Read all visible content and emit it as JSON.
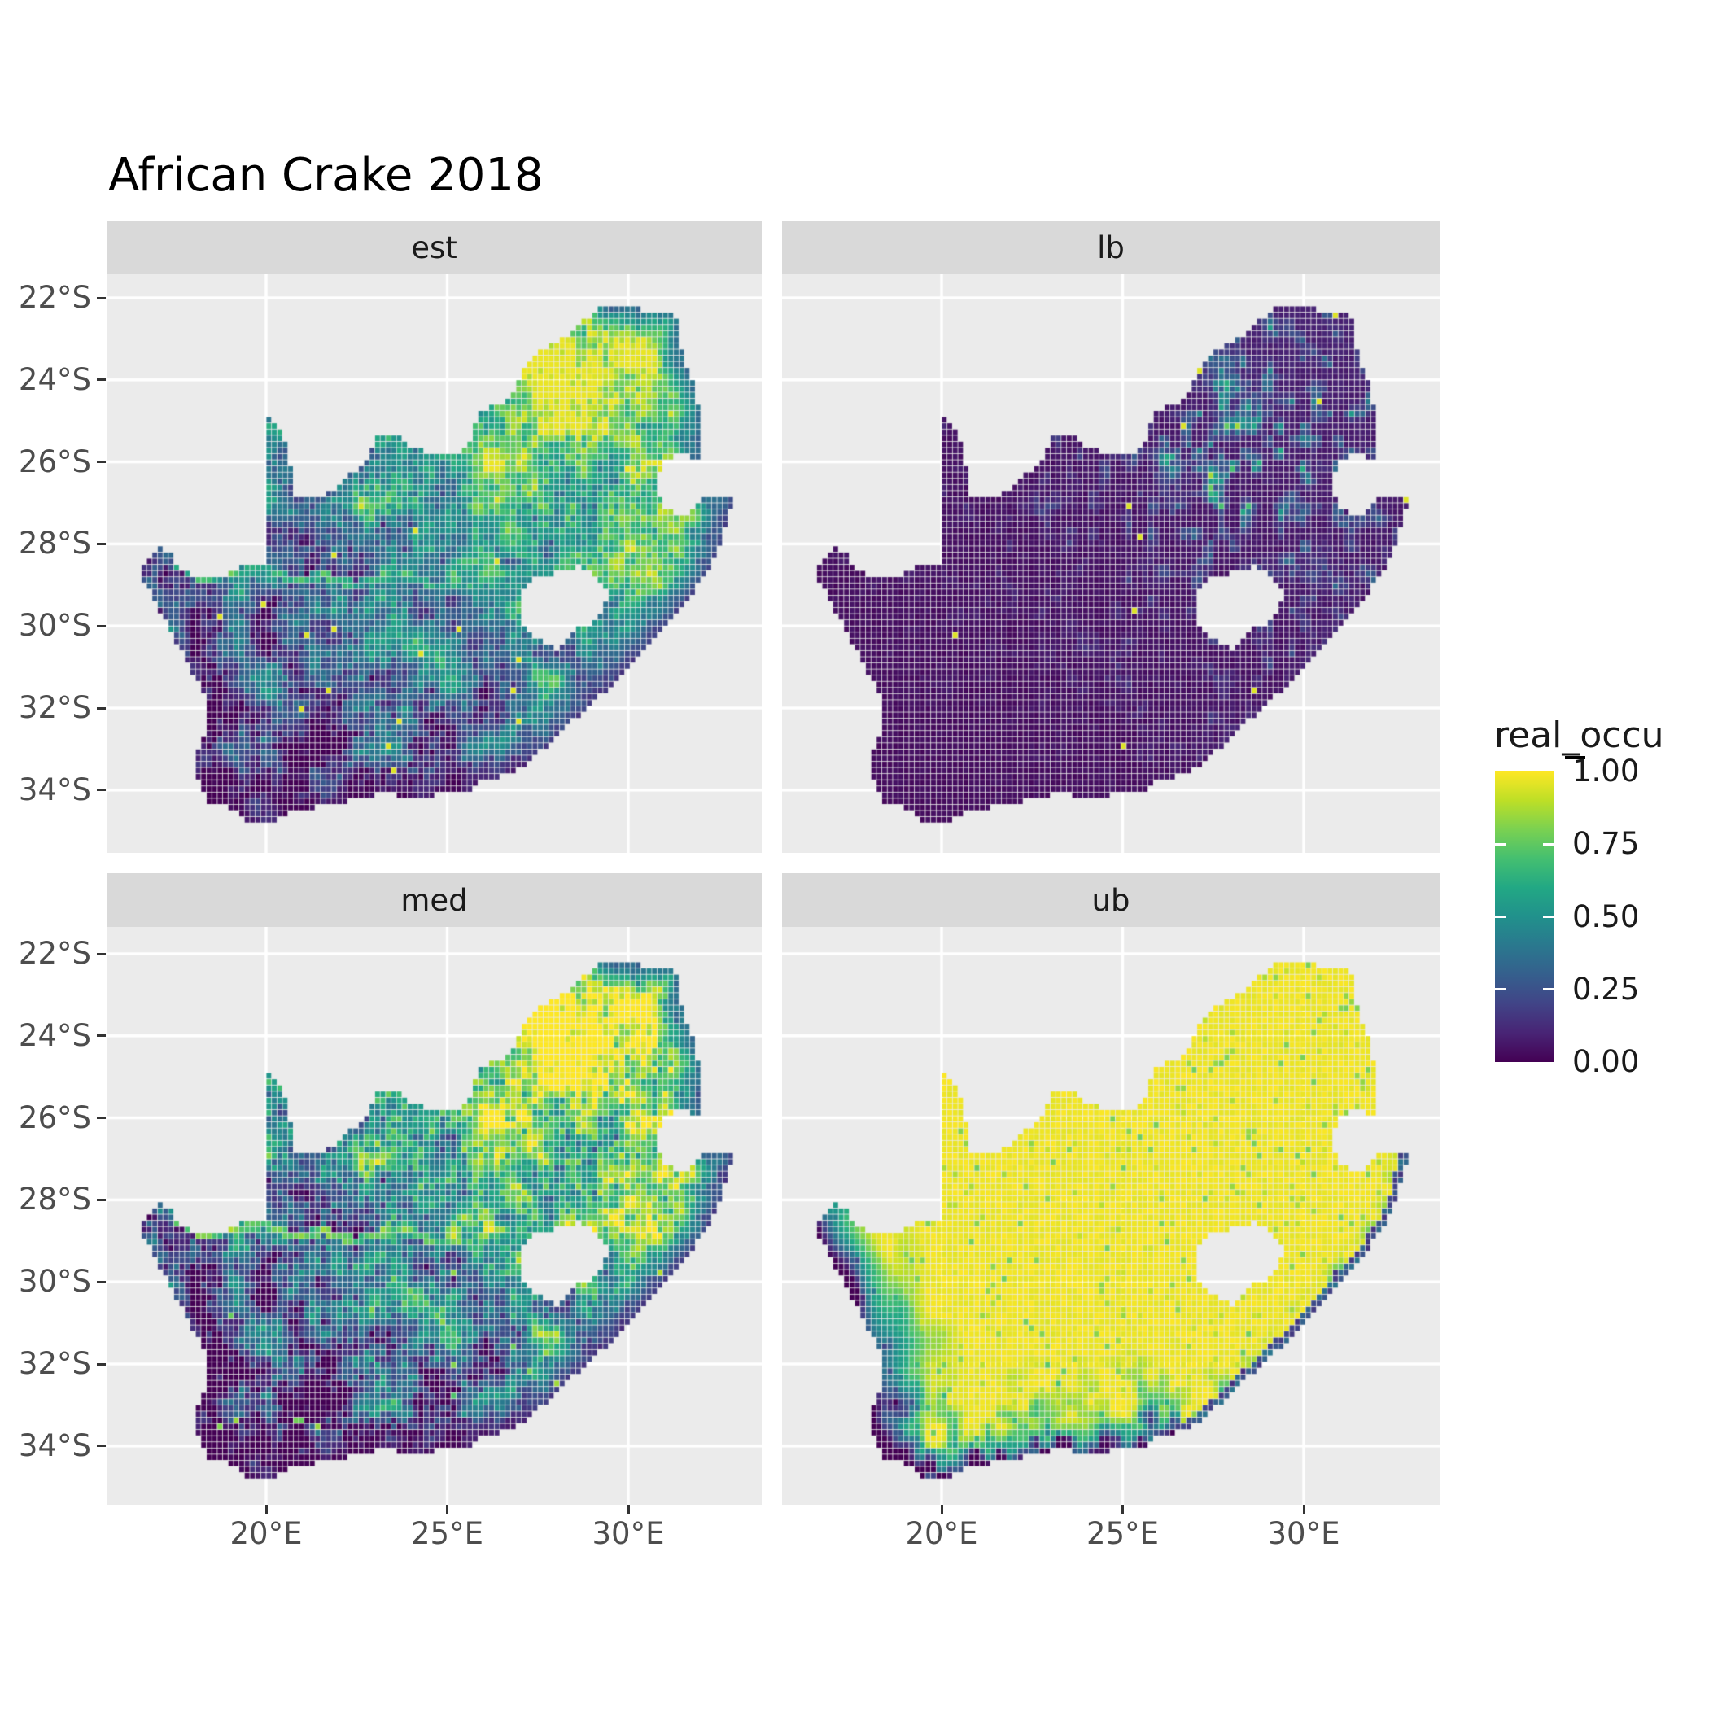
{
  "title": "African Crake 2018",
  "facets": [
    {
      "id": "est",
      "label": "est",
      "kind": "estimate",
      "seed": 1,
      "summary": "occupancy estimate: high 0.6-1.0 in north-east (Highveld/Limpopo), moderate 0.4-0.6 teal in central Kalahari, low 0.05-0.3 dark purple in south-west Karoo and along the south and east coasts; green band along the Orange River"
    },
    {
      "id": "lb",
      "label": "lb",
      "kind": "lower_bound",
      "seed": 2,
      "summary": "lower bound: near 0 (dark purple) almost everywhere, speckled teal-green 0.3-0.8 patches concentrated around Gauteng and the north-east, rare isolated yellow (1.0) cells"
    },
    {
      "id": "med",
      "label": "med",
      "kind": "median",
      "seed": 3,
      "summary": "median: like est but higher contrast - large yellow ~1.0 areas in the north-east, very dark south-west with sparse bright speckles, bright Orange River line"
    },
    {
      "id": "ub",
      "label": "ub",
      "kind": "upper_bound",
      "seed": 4,
      "summary": "upper bound: ~1.0 yellow nearly everywhere; dark 0-0.4 band along the west coast and the southern Cape coast with noisy teal transition, thin dark strip on the east coast"
    }
  ],
  "axes": {
    "x": {
      "ticks": [
        {
          "value": 20,
          "label": "20°E"
        },
        {
          "value": 25,
          "label": "25°E"
        },
        {
          "value": 30,
          "label": "30°E"
        }
      ]
    },
    "y": {
      "ticks": [
        {
          "value": -22,
          "label": "22°S"
        },
        {
          "value": -24,
          "label": "24°S"
        },
        {
          "value": -26,
          "label": "26°S"
        },
        {
          "value": -28,
          "label": "28°S"
        },
        {
          "value": -30,
          "label": "30°S"
        },
        {
          "value": -32,
          "label": "32°S"
        },
        {
          "value": -34,
          "label": "34°S"
        }
      ]
    }
  },
  "legend": {
    "title": "real_occu",
    "ticks": [
      {
        "value": 1.0,
        "label": "1.00"
      },
      {
        "value": 0.75,
        "label": "0.75"
      },
      {
        "value": 0.5,
        "label": "0.50"
      },
      {
        "value": 0.25,
        "label": "0.25"
      },
      {
        "value": 0.0,
        "label": "0.00"
      }
    ]
  },
  "colors": {
    "figure_bg": "#FFFFFF",
    "panel_bg": "#EBEBEB",
    "strip_bg": "#D9D9D9",
    "grid": "#FFFFFF",
    "axis_text": "#4D4D4D",
    "strip_text": "#1A1A1A",
    "title_text": "#000000",
    "tick_mark": "#333333",
    "viridis": [
      "#440154",
      "#482475",
      "#414487",
      "#355f8d",
      "#2a788e",
      "#21918c",
      "#22a884",
      "#44bf70",
      "#7ad151",
      "#bddf26",
      "#fde725"
    ]
  },
  "chart_data": {
    "type": "heatmap",
    "subtype": "faceted_raster_map",
    "region": "South Africa",
    "title": "African Crake 2018",
    "facet_labels": [
      "est",
      "lb",
      "med",
      "ub"
    ],
    "legend_title": "real_occu",
    "value_range": [
      0.0,
      1.0
    ],
    "legend_tick_labels": [
      "1.00",
      "0.75",
      "0.50",
      "0.25",
      "0.00"
    ],
    "x_tick_labels": [
      "20°E",
      "25°E",
      "30°E"
    ],
    "y_tick_labels": [
      "22°S",
      "24°S",
      "26°S",
      "28°S",
      "30°S",
      "32°S",
      "34°S"
    ],
    "palette": "viridis",
    "grid": "white major gridlines on grey panel",
    "cell_size_deg": 0.15,
    "lon_range": [
      15.6,
      33.7
    ],
    "lat_range": [
      -35.5,
      -21.4
    ],
    "map_outline": [
      [
        16.45,
        -28.6
      ],
      [
        16.8,
        -28.3
      ],
      [
        17.1,
        -28.08
      ],
      [
        17.35,
        -28.22
      ],
      [
        17.6,
        -28.52
      ],
      [
        18.05,
        -28.86
      ],
      [
        18.55,
        -28.87
      ],
      [
        19.0,
        -28.68
      ],
      [
        19.5,
        -28.5
      ],
      [
        19.99,
        -28.43
      ],
      [
        19.99,
        -24.76
      ],
      [
        20.25,
        -25.05
      ],
      [
        20.45,
        -25.35
      ],
      [
        20.62,
        -25.7
      ],
      [
        20.65,
        -26.1
      ],
      [
        20.84,
        -26.35
      ],
      [
        20.68,
        -26.65
      ],
      [
        20.85,
        -26.82
      ],
      [
        21.4,
        -26.85
      ],
      [
        21.9,
        -26.67
      ],
      [
        22.3,
        -26.3
      ],
      [
        22.72,
        -26.1
      ],
      [
        22.88,
        -25.85
      ],
      [
        23.0,
        -25.42
      ],
      [
        23.45,
        -25.28
      ],
      [
        24.0,
        -25.63
      ],
      [
        24.7,
        -25.8
      ],
      [
        25.35,
        -25.75
      ],
      [
        25.62,
        -25.48
      ],
      [
        25.9,
        -24.75
      ],
      [
        26.4,
        -24.63
      ],
      [
        26.85,
        -24.28
      ],
      [
        27.15,
        -23.65
      ],
      [
        27.7,
        -23.22
      ],
      [
        28.25,
        -22.95
      ],
      [
        29.0,
        -22.4
      ],
      [
        29.45,
        -22.15
      ],
      [
        29.95,
        -22.2
      ],
      [
        30.5,
        -22.32
      ],
      [
        31.3,
        -22.42
      ],
      [
        31.55,
        -23.5
      ],
      [
        31.9,
        -24.3
      ],
      [
        31.98,
        -25.15
      ],
      [
        31.95,
        -25.95
      ],
      [
        31.4,
        -25.73
      ],
      [
        30.95,
        -26.05
      ],
      [
        30.8,
        -26.45
      ],
      [
        30.85,
        -26.8
      ],
      [
        31.1,
        -27.2
      ],
      [
        31.6,
        -27.32
      ],
      [
        31.97,
        -27.0
      ],
      [
        32.12,
        -26.85
      ],
      [
        32.9,
        -26.86
      ],
      [
        32.58,
        -28.0
      ],
      [
        32.25,
        -28.6
      ],
      [
        31.75,
        -29.25
      ],
      [
        31.05,
        -29.9
      ],
      [
        30.25,
        -30.75
      ],
      [
        29.35,
        -31.6
      ],
      [
        28.5,
        -32.3
      ],
      [
        27.6,
        -33.05
      ],
      [
        26.8,
        -33.6
      ],
      [
        26.0,
        -33.75
      ],
      [
        25.65,
        -34.05
      ],
      [
        25.0,
        -34.05
      ],
      [
        24.2,
        -34.2
      ],
      [
        23.4,
        -34.1
      ],
      [
        22.6,
        -34.15
      ],
      [
        21.8,
        -34.4
      ],
      [
        20.8,
        -34.45
      ],
      [
        20.05,
        -34.85
      ],
      [
        19.4,
        -34.72
      ],
      [
        18.95,
        -34.4
      ],
      [
        18.45,
        -34.35
      ],
      [
        18.25,
        -34.05
      ],
      [
        17.95,
        -33.3
      ],
      [
        18.35,
        -32.5
      ],
      [
        18.3,
        -31.7
      ],
      [
        17.7,
        -30.7
      ],
      [
        17.15,
        -29.75
      ],
      [
        16.75,
        -29.1
      ]
    ],
    "lesotho_hole": [
      [
        27.0,
        -29.6
      ],
      [
        27.05,
        -29.15
      ],
      [
        27.45,
        -28.75
      ],
      [
        27.9,
        -28.76
      ],
      [
        28.35,
        -28.6
      ],
      [
        28.75,
        -28.56
      ],
      [
        29.15,
        -28.85
      ],
      [
        29.45,
        -29.25
      ],
      [
        29.3,
        -29.65
      ],
      [
        28.9,
        -29.95
      ],
      [
        28.4,
        -30.15
      ],
      [
        28.05,
        -30.55
      ],
      [
        27.7,
        -30.45
      ],
      [
        27.35,
        -30.2
      ],
      [
        27.1,
        -29.9
      ]
    ],
    "coast_east": [
      [
        32.9,
        -26.86
      ],
      [
        32.58,
        -28.0
      ],
      [
        32.25,
        -28.6
      ],
      [
        31.75,
        -29.25
      ],
      [
        31.05,
        -29.9
      ],
      [
        30.25,
        -30.75
      ],
      [
        29.35,
        -31.6
      ],
      [
        28.5,
        -32.3
      ],
      [
        27.6,
        -33.05
      ],
      [
        26.8,
        -33.6
      ],
      [
        26.0,
        -33.75
      ]
    ],
    "coast_south": [
      [
        26.0,
        -33.75
      ],
      [
        25.65,
        -34.05
      ],
      [
        25.0,
        -34.05
      ],
      [
        24.2,
        -34.2
      ],
      [
        23.4,
        -34.1
      ],
      [
        22.6,
        -34.15
      ],
      [
        21.8,
        -34.4
      ],
      [
        20.8,
        -34.45
      ],
      [
        20.05,
        -34.85
      ],
      [
        19.4,
        -34.72
      ],
      [
        18.95,
        -34.4
      ],
      [
        18.45,
        -34.35
      ],
      [
        18.25,
        -34.05
      ]
    ],
    "coast_west": [
      [
        18.25,
        -34.05
      ],
      [
        17.95,
        -33.3
      ],
      [
        18.35,
        -32.5
      ],
      [
        18.3,
        -31.7
      ],
      [
        17.7,
        -30.7
      ],
      [
        17.15,
        -29.75
      ],
      [
        16.75,
        -29.1
      ],
      [
        16.45,
        -28.6
      ]
    ],
    "river_orange": [
      [
        17.6,
        -28.55
      ],
      [
        18.3,
        -28.85
      ],
      [
        19.2,
        -28.7
      ],
      [
        20.0,
        -28.6
      ],
      [
        20.8,
        -28.9
      ],
      [
        21.6,
        -28.75
      ],
      [
        22.4,
        -29.0
      ],
      [
        23.2,
        -28.8
      ],
      [
        24.0,
        -28.75
      ],
      [
        24.6,
        -29.0
      ]
    ],
    "border_ne": [
      [
        29.45,
        -22.15
      ],
      [
        29.95,
        -22.2
      ],
      [
        30.5,
        -22.32
      ],
      [
        31.3,
        -22.42
      ],
      [
        31.55,
        -23.5
      ],
      [
        31.9,
        -24.3
      ],
      [
        31.98,
        -25.15
      ],
      [
        31.95,
        -25.95
      ]
    ]
  }
}
